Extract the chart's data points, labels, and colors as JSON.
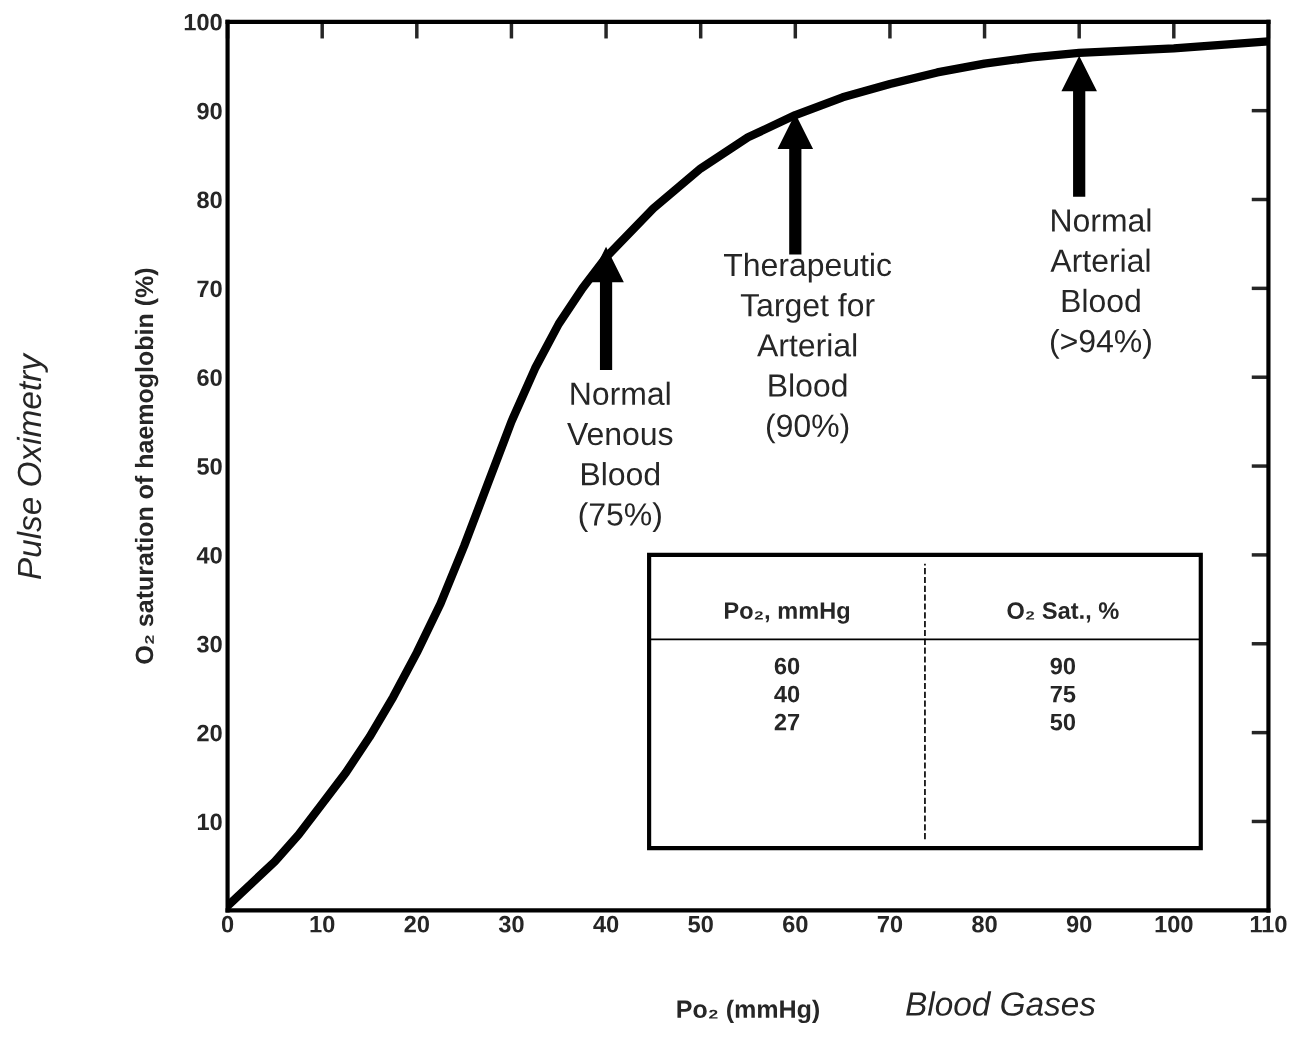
{
  "chart_data": {
    "type": "line",
    "xlabel": "Po₂ (mmHg)",
    "ylabel": "O₂ saturation of haemoglobin (%)",
    "x": [
      0,
      2.5,
      5,
      7.5,
      10,
      12.5,
      15,
      17.5,
      20,
      22.5,
      25,
      27.5,
      30,
      32.5,
      35,
      37.5,
      40,
      45,
      50,
      55,
      60,
      65,
      70,
      75,
      80,
      85,
      90,
      100,
      110
    ],
    "series": [
      {
        "color": "#000000",
        "values": [
          0.5,
          3,
          5.5,
          8.5,
          12,
          15.5,
          19.5,
          24,
          29,
          34.5,
          41,
          48,
          55,
          61,
          66,
          70,
          73.5,
          79,
          83.5,
          87,
          89.5,
          91.5,
          93,
          94.3,
          95.3,
          96,
          96.5,
          97,
          97.8
        ]
      }
    ],
    "xlim": [
      0,
      110
    ],
    "ylim": [
      0,
      100
    ],
    "xticks": [
      0,
      10,
      20,
      30,
      40,
      50,
      60,
      70,
      80,
      90,
      100,
      110
    ],
    "yticks": [
      10,
      20,
      30,
      40,
      50,
      60,
      70,
      80,
      90,
      100
    ],
    "grid": false,
    "legend": false,
    "marker": "none",
    "line_style": "solid",
    "annotations": [
      "Normal\nVenous\nBlood\n(75%)",
      "Therapeutic\nTarget for\nArterial\nBlood\n(90%)",
      "Normal\nArterial\nBlood\n(>94%)",
      "Pulse Oximetry",
      "Blood Gases",
      "Po₂, mmHg\n60\n40\n27",
      "O₂ Sat., %\n90\n75\n50"
    ]
  }
}
